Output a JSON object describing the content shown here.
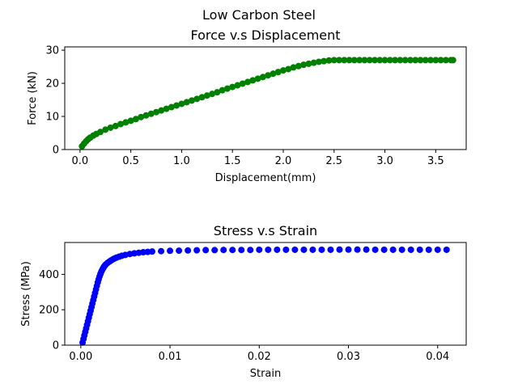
{
  "figure": {
    "suptitle": "Low Carbon Steel"
  },
  "chart_data": [
    {
      "type": "scatter",
      "title": "Force v.s Displacement",
      "xlabel": "Displacement(mm)",
      "ylabel": "Force (kN)",
      "xlim": [
        -0.15,
        3.8
      ],
      "ylim": [
        0,
        31
      ],
      "xticks": [
        0.0,
        0.5,
        1.0,
        1.5,
        2.0,
        2.5,
        3.0,
        3.5
      ],
      "xtick_labels": [
        "0.0",
        "0.5",
        "1.0",
        "1.5",
        "2.0",
        "2.5",
        "3.0",
        "3.5"
      ],
      "yticks": [
        0,
        10,
        20,
        30
      ],
      "ytick_labels": [
        "0",
        "10",
        "20",
        "30"
      ],
      "grid": false,
      "color": "#008000",
      "series": [
        {
          "x": [
            0.02,
            0.04,
            0.06,
            0.08,
            0.1,
            0.13,
            0.16,
            0.2,
            0.25,
            0.3,
            0.35,
            0.4,
            0.45,
            0.5,
            0.55,
            0.6,
            0.65,
            0.7,
            0.75,
            0.8,
            0.85,
            0.9,
            0.95,
            1.0,
            1.05,
            1.1,
            1.15,
            1.2,
            1.25,
            1.3,
            1.35,
            1.4,
            1.45,
            1.5,
            1.55,
            1.6,
            1.65,
            1.7,
            1.75,
            1.8,
            1.85,
            1.9,
            1.95,
            2.0,
            2.05,
            2.1,
            2.15,
            2.2,
            2.25,
            2.3,
            2.35,
            2.4,
            2.45,
            2.5,
            2.55,
            2.6,
            2.65,
            2.7,
            2.75,
            2.8,
            2.85,
            2.9,
            2.95,
            3.0,
            3.05,
            3.1,
            3.15,
            3.2,
            3.25,
            3.3,
            3.35,
            3.4,
            3.45,
            3.5,
            3.55,
            3.6,
            3.65,
            3.67
          ],
          "y": [
            1.0,
            1.8,
            2.5,
            3.1,
            3.6,
            4.2,
            4.7,
            5.3,
            6.0,
            6.6,
            7.1,
            7.7,
            8.2,
            8.7,
            9.2,
            9.8,
            10.3,
            10.8,
            11.3,
            11.8,
            12.3,
            12.8,
            13.3,
            13.8,
            14.3,
            14.8,
            15.3,
            15.8,
            16.3,
            16.8,
            17.3,
            17.9,
            18.4,
            18.9,
            19.4,
            19.9,
            20.4,
            20.9,
            21.4,
            21.9,
            22.4,
            22.9,
            23.4,
            23.9,
            24.3,
            24.8,
            25.2,
            25.6,
            25.9,
            26.2,
            26.5,
            26.7,
            26.9,
            27.0,
            27.0,
            27.0,
            27.0,
            27.0,
            27.0,
            27.0,
            27.0,
            27.0,
            27.0,
            27.0,
            27.0,
            27.0,
            27.0,
            27.0,
            27.0,
            27.0,
            27.0,
            27.0,
            27.0,
            27.0,
            27.0,
            27.0,
            27.0,
            27.0
          ]
        }
      ]
    },
    {
      "type": "scatter",
      "title": "Stress v.s Strain",
      "xlabel": "Strain",
      "ylabel": "Stress (MPa)",
      "xlim": [
        -0.0018,
        0.0432
      ],
      "ylim": [
        0,
        580
      ],
      "xticks": [
        0.0,
        0.01,
        0.02,
        0.03,
        0.04
      ],
      "xtick_labels": [
        "0.00",
        "0.01",
        "0.02",
        "0.03",
        "0.04"
      ],
      "yticks": [
        0,
        200,
        400
      ],
      "ytick_labels": [
        "0",
        "200",
        "400"
      ],
      "grid": false,
      "color": "#0000ff",
      "series": [
        {
          "x": [
            0.0002,
            0.0003,
            0.0004,
            0.0005,
            0.0006,
            0.0007,
            0.0008,
            0.0009,
            0.001,
            0.0011,
            0.0012,
            0.0013,
            0.0014,
            0.0015,
            0.0016,
            0.0017,
            0.0018,
            0.0019,
            0.002,
            0.0021,
            0.0022,
            0.0023,
            0.0024,
            0.0025,
            0.0026,
            0.0027,
            0.0028,
            0.003,
            0.0032,
            0.0034,
            0.0036,
            0.0038,
            0.004,
            0.0043,
            0.0046,
            0.005,
            0.0055,
            0.006,
            0.0065,
            0.007,
            0.0075,
            0.008,
            0.009,
            0.01,
            0.011,
            0.012,
            0.013,
            0.014,
            0.015,
            0.016,
            0.017,
            0.018,
            0.019,
            0.02,
            0.021,
            0.022,
            0.023,
            0.024,
            0.025,
            0.026,
            0.027,
            0.028,
            0.029,
            0.03,
            0.031,
            0.032,
            0.033,
            0.034,
            0.035,
            0.036,
            0.037,
            0.038,
            0.039,
            0.04,
            0.041
          ],
          "y": [
            15,
            35,
            55,
            75,
            95,
            115,
            135,
            155,
            175,
            195,
            215,
            235,
            255,
            275,
            295,
            315,
            335,
            355,
            372,
            388,
            402,
            415,
            425,
            435,
            443,
            450,
            456,
            465,
            472,
            479,
            485,
            490,
            495,
            500,
            505,
            510,
            515,
            519,
            522,
            525,
            527,
            529,
            531,
            533,
            534,
            535,
            536,
            537,
            537,
            538,
            538,
            538,
            538,
            539,
            539,
            539,
            539,
            539,
            539,
            539,
            539,
            539,
            540,
            540,
            540,
            540,
            539,
            539,
            539,
            539,
            539,
            539,
            539,
            539,
            539
          ]
        }
      ]
    }
  ]
}
